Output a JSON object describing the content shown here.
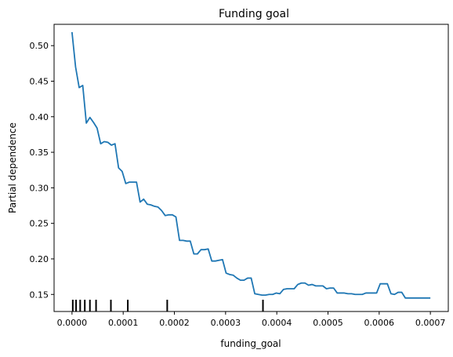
{
  "chart_data": {
    "type": "line",
    "title": "Funding goal",
    "xlabel": "funding_goal",
    "ylabel": "Partial dependence",
    "xlim": [
      -3.5e-05,
      0.000735
    ],
    "ylim": [
      0.126,
      0.53
    ],
    "xticks": [
      0.0,
      0.0001,
      0.0002,
      0.0003,
      0.0004,
      0.0005,
      0.0006,
      0.0007
    ],
    "xtick_labels": [
      "0.0000",
      "0.0001",
      "0.0002",
      "0.0003",
      "0.0004",
      "0.0005",
      "0.0006",
      "0.0007"
    ],
    "yticks": [
      0.15,
      0.2,
      0.25,
      0.3,
      0.35,
      0.4,
      0.45,
      0.5
    ],
    "ytick_labels": [
      "0.15",
      "0.20",
      "0.25",
      "0.30",
      "0.35",
      "0.40",
      "0.45",
      "0.50"
    ],
    "grid": false,
    "series": [
      {
        "color": "#1f77b4",
        "x": [
          0.0,
          7e-06,
          1.4e-05,
          2.1e-05,
          2.8e-05,
          3.5e-05,
          4.2e-05,
          4.9e-05,
          5.6e-05,
          6.3e-05,
          7e-05,
          7.7e-05,
          8.4e-05,
          9.1e-05,
          9.8e-05,
          0.000105,
          0.000112,
          0.000119,
          0.000126,
          0.000133,
          0.00014,
          0.000147,
          0.000154,
          0.000161,
          0.000168,
          0.000175,
          0.000182,
          0.000189,
          0.000196,
          0.000203,
          0.00021,
          0.000217,
          0.000224,
          0.000231,
          0.000238,
          0.000245,
          0.000252,
          0.000259,
          0.000266,
          0.000273,
          0.00028,
          0.000287,
          0.000294,
          0.000301,
          0.000308,
          0.000315,
          0.000322,
          0.000329,
          0.000336,
          0.000343,
          0.00035,
          0.000357,
          0.000364,
          0.000371,
          0.000378,
          0.000385,
          0.000392,
          0.000399,
          0.000406,
          0.000413,
          0.00042,
          0.000427,
          0.000434,
          0.000441,
          0.000448,
          0.000455,
          0.000462,
          0.000469,
          0.000476,
          0.000483,
          0.00049,
          0.000497,
          0.000504,
          0.000511,
          0.000518,
          0.000525,
          0.000532,
          0.000539,
          0.000546,
          0.000553,
          0.00056,
          0.000567,
          0.000574,
          0.000581,
          0.000588,
          0.000595,
          0.000602,
          0.000609,
          0.000616,
          0.000623,
          0.00063,
          0.000637,
          0.000644,
          0.000651,
          0.000658,
          0.000665,
          0.000672,
          0.000679,
          0.000686,
          0.000693,
          0.0007
        ],
        "y": [
          0.519,
          0.47,
          0.441,
          0.444,
          0.391,
          0.399,
          0.392,
          0.384,
          0.362,
          0.365,
          0.364,
          0.36,
          0.362,
          0.328,
          0.323,
          0.306,
          0.308,
          0.308,
          0.308,
          0.28,
          0.284,
          0.277,
          0.276,
          0.274,
          0.273,
          0.268,
          0.261,
          0.262,
          0.262,
          0.259,
          0.226,
          0.226,
          0.225,
          0.225,
          0.207,
          0.207,
          0.213,
          0.213,
          0.214,
          0.197,
          0.197,
          0.198,
          0.199,
          0.18,
          0.178,
          0.177,
          0.173,
          0.17,
          0.17,
          0.173,
          0.173,
          0.151,
          0.15,
          0.149,
          0.149,
          0.15,
          0.15,
          0.152,
          0.151,
          0.157,
          0.158,
          0.158,
          0.158,
          0.164,
          0.166,
          0.166,
          0.163,
          0.164,
          0.162,
          0.162,
          0.162,
          0.158,
          0.159,
          0.159,
          0.152,
          0.152,
          0.152,
          0.151,
          0.151,
          0.15,
          0.15,
          0.15,
          0.152,
          0.152,
          0.152,
          0.152,
          0.165,
          0.165,
          0.165,
          0.151,
          0.15,
          0.153,
          0.153,
          0.145,
          0.145,
          0.145,
          0.145,
          0.145,
          0.145,
          0.145,
          0.145
        ]
      }
    ],
    "rug": [
      1.5e-06,
      8e-06,
      1.6e-05,
      2.5e-05,
      3.5e-05,
      4.7e-05,
      7.6e-05,
      0.000109,
      0.000186,
      0.000373
    ]
  }
}
